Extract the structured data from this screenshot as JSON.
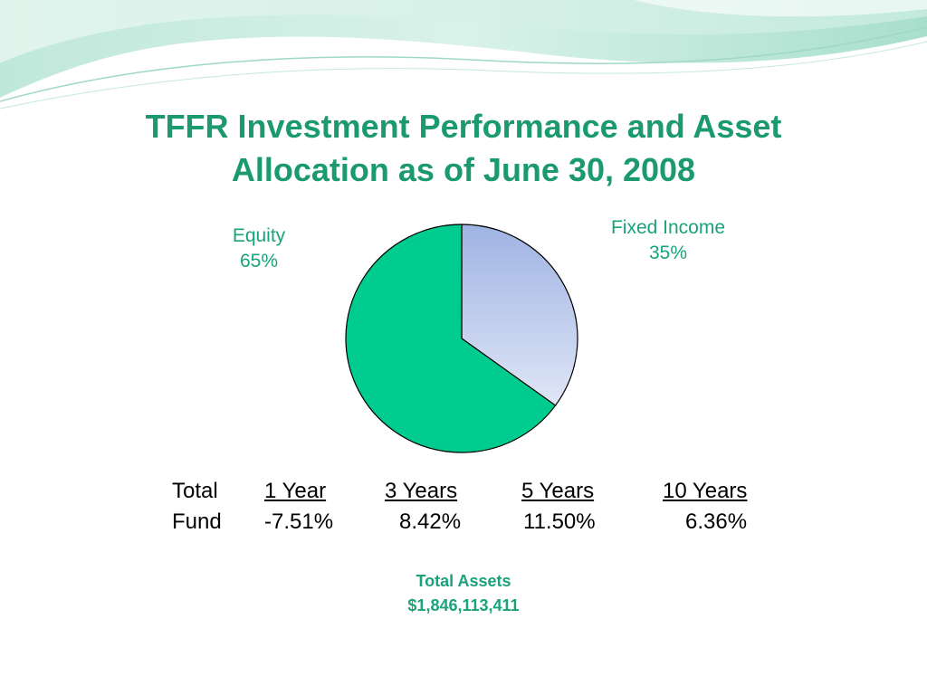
{
  "title": {
    "line1": "TFFR Investment Performance and Asset",
    "line2": "Allocation as of June 30, 2008"
  },
  "chart_data": {
    "type": "pie",
    "title": "",
    "slices": [
      {
        "label": "Fixed Income",
        "value": 35,
        "value_label": "35%",
        "color": "#b8c6ea"
      },
      {
        "label": "Equity",
        "value": 65,
        "value_label": "65%",
        "color": "#00cc8f"
      }
    ],
    "legend": "none",
    "start": "12 o'clock, clockwise"
  },
  "performance": {
    "row_labels": [
      "Total",
      "Fund"
    ],
    "periods": [
      {
        "header": "1 Year",
        "value": "-7.51%"
      },
      {
        "header": "3 Years",
        "value": "8.42%"
      },
      {
        "header": "5 Years",
        "value": "11.50%"
      },
      {
        "header": "10 Years",
        "value": "6.36%"
      }
    ]
  },
  "total_assets": {
    "label": "Total Assets",
    "value": "$1,846,113,411"
  },
  "colors": {
    "title": "#1a9a6e",
    "accent_text": "#1aa37a",
    "equity": "#00cc8f",
    "fixed_income_top": "#9fb3e3",
    "fixed_income_bottom": "#dfe6f6"
  }
}
